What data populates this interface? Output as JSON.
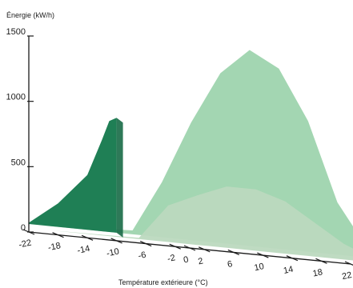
{
  "chart_data": {
    "type": "area",
    "ylabel": "Énergie (kW/h)",
    "xlabel": "Température extérieure (°C)",
    "ylim": [
      0,
      1500
    ],
    "y_ticks": [
      0,
      500,
      1000,
      1500
    ],
    "x_ticks": [
      -22,
      -18,
      -14,
      -10,
      -6,
      -2,
      0,
      2,
      6,
      10,
      14,
      18,
      22
    ],
    "legend": "none",
    "grid": false,
    "three_d": true,
    "series": [
      {
        "color": "#1f7f55",
        "x": [
          -22,
          -18,
          -14,
          -12,
          -11,
          -10
        ],
        "values": [
          10,
          180,
          420,
          700,
          850,
          880
        ]
      },
      {
        "color": "#9ed4ae",
        "x": [
          -22,
          -10,
          -6,
          -2,
          2,
          6,
          10,
          14,
          18,
          22
        ],
        "values": [
          0,
          30,
          420,
          900,
          1300,
          1500,
          1380,
          1000,
          400,
          80
        ]
      },
      {
        "color": "#bcd9bf",
        "x": [
          -22,
          -10,
          -6,
          -2,
          2,
          6,
          10,
          14,
          18,
          22
        ],
        "values": [
          0,
          10,
          280,
          380,
          470,
          470,
          400,
          260,
          120,
          30
        ]
      }
    ]
  }
}
